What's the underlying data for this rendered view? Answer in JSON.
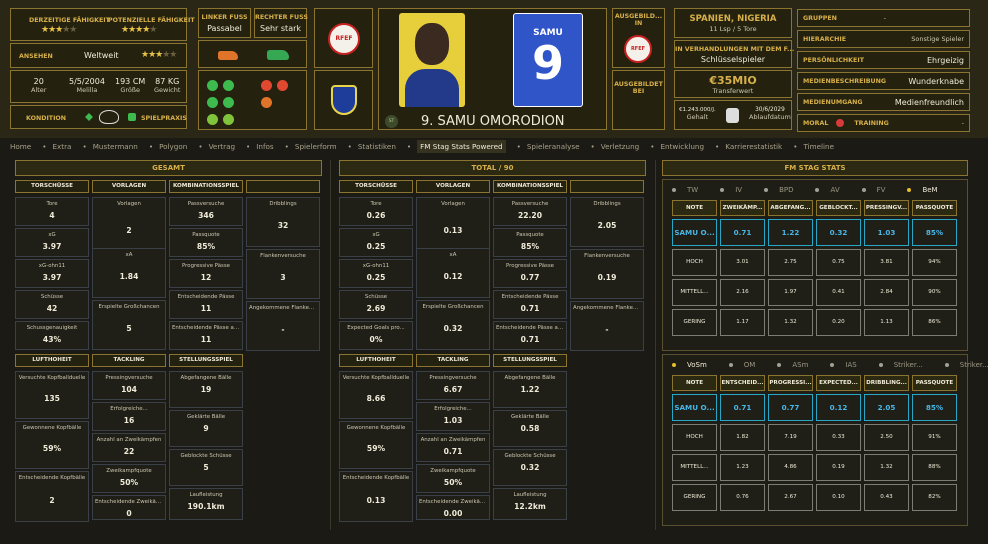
{
  "header": {
    "ratings": {
      "current_label": "DERZEITIGE FÄHIGKEIT",
      "current_stars": 3,
      "potential_label": "POTENZIELLE FÄHIGKEIT",
      "potential_stars": 4.5,
      "reputation_label": "ANSEHEN",
      "reputation_value": "Weltweit",
      "reputation_stars": 3.5
    },
    "bio": {
      "age": "20",
      "age_label": "Alter",
      "dob": "5/5/2004",
      "dob_label": "Melilla",
      "height": "193 CM",
      "height_label": "Größe",
      "weight": "87 KG",
      "weight_label": "Gewicht"
    },
    "condition_label": "KONDITION",
    "match_practice_label": "SPIELPRAXIS",
    "feet": {
      "left_label": "LINKER FUSS",
      "left_value": "Passabel",
      "right_label": "RECHTER FUSS",
      "right_value": "Sehr stark"
    },
    "federation_logo": "RFEF",
    "club_logo": "FC Porto",
    "player": {
      "shirt_name": "SAMU",
      "shirt_number": "9",
      "full_name": "9. SAMU OMORODION",
      "position_badge": "ST"
    },
    "trained": {
      "label1": "AUSGEBILD... IN",
      "label2": "AUSGEBILDET BEI"
    },
    "nation": {
      "value": "SPANIEN, NIGERIA",
      "caps": "11 Lsp / 5 Tore"
    },
    "negotiation": {
      "label": "IN VERHANDLUNGEN MIT DEM F...",
      "value": "Schlüsselspieler"
    },
    "transfer": {
      "value": "€35MIO",
      "label": "Transferwert"
    },
    "wage": {
      "value": "€1.243.000/J.",
      "label": "Gehalt",
      "expiry": "30/6/2029",
      "expiry_label": "Ablaufdatum"
    },
    "attributes": [
      {
        "label": "GRUPPEN",
        "value": "-"
      },
      {
        "label": "HIERARCHIE",
        "value": "Sonstige Spieler"
      },
      {
        "label": "PERSÖNLICHKEIT",
        "value": "Ehrgeizig"
      },
      {
        "label": "MEDIENBESCHREIBUNG",
        "value": "Wunderknabe"
      },
      {
        "label": "MEDIENUMGANG",
        "value": "Medienfreundlich"
      }
    ],
    "moral_label": "MORAL",
    "training_label": "TRAINING",
    "training_value": "-"
  },
  "nav": [
    "Home",
    "Extra",
    "Mustermann",
    "Polygon",
    "Vertrag",
    "Infos",
    "Spielerform",
    "Statistiken",
    "FM Stag Stats Powered",
    "Spieleranalyse",
    "Verletzung",
    "Entwicklung",
    "Karrierestatistik",
    "Timeline"
  ],
  "nav_active": 8,
  "panels": {
    "gesamt": {
      "title": "GESAMT",
      "torschuesse": {
        "title": "TORSCHÜSSE",
        "cells": [
          {
            "l": "Tore",
            "v": "4"
          },
          {
            "l": "xG",
            "v": "3.97"
          },
          {
            "l": "xG-ohn11",
            "v": "3.97"
          },
          {
            "l": "Schüsse",
            "v": "42"
          },
          {
            "l": "Schussgenauigkeit",
            "v": "43%"
          }
        ]
      },
      "vorlagen": {
        "title": "VORLAGEN",
        "cells": [
          {
            "l": "Vorlagen",
            "v": "2"
          },
          {
            "l": "xA",
            "v": "1.84"
          },
          {
            "l": "Erspielte Großchancen",
            "v": "5"
          }
        ]
      },
      "kombi": {
        "title": "KOMBINATIONSSPIEL",
        "cells": [
          {
            "l": "Passversuche",
            "v": "346"
          },
          {
            "l": "Passquote",
            "v": "85%"
          },
          {
            "l": "Progressive Pässe",
            "v": "12"
          },
          {
            "l": "Entscheidende Pässe",
            "v": "11"
          },
          {
            "l": "Entscheidende Pässe aus...",
            "v": "11"
          }
        ]
      },
      "flanken": {
        "title": "",
        "cells": [
          {
            "l": "Dribblings",
            "v": "32"
          },
          {
            "l": "Flankenversuche",
            "v": "3"
          },
          {
            "l": "Angekommene Flanken / Versuche",
            "v": "-"
          }
        ]
      },
      "luft": {
        "title": "LUFTHOHEIT",
        "cells": [
          {
            "l": "Versuchte Kopfballduelle",
            "v": "135"
          },
          {
            "l": "Gewonnene Kopfbälle",
            "v": "59%"
          },
          {
            "l": "Entscheidende Kopfbälle",
            "v": "2"
          }
        ]
      },
      "tackling": {
        "title": "TACKLING",
        "cells": [
          {
            "l": "Pressingversuche",
            "v": "104"
          },
          {
            "l": "Erfolgreiche...",
            "v": "16"
          },
          {
            "l": "Anzahl an Zweikämpfen",
            "v": "22"
          },
          {
            "l": "Zweikampfquote",
            "v": "50%"
          },
          {
            "l": "Entscheidende Zweikämpfe",
            "v": "0"
          }
        ]
      },
      "stellung": {
        "title": "STELLUNGSSPIEL",
        "cells": [
          {
            "l": "Abgefangene Bälle",
            "v": "19"
          },
          {
            "l": "Geklärte Bälle",
            "v": "9"
          },
          {
            "l": "Geblockte Schüsse",
            "v": "5"
          },
          {
            "l": "Laufleistung",
            "v": "190.1km"
          }
        ]
      }
    },
    "per90": {
      "title": "TOTAL / 90",
      "torschuesse": {
        "title": "TORSCHÜSSE",
        "cells": [
          {
            "l": "Tore",
            "v": "0.26"
          },
          {
            "l": "xG",
            "v": "0.25"
          },
          {
            "l": "xG-ohn11",
            "v": "0.25"
          },
          {
            "l": "Schüsse",
            "v": "2.69"
          },
          {
            "l": "Expected Goals pro...",
            "v": "0%"
          }
        ]
      },
      "vorlagen": {
        "title": "VORLAGEN",
        "cells": [
          {
            "l": "Vorlagen",
            "v": "0.13"
          },
          {
            "l": "xA",
            "v": "0.12"
          },
          {
            "l": "Erspielte Großchancen",
            "v": "0.32"
          }
        ]
      },
      "kombi": {
        "title": "KOMBINATIONSSPIEL",
        "cells": [
          {
            "l": "Passversuche",
            "v": "22.20"
          },
          {
            "l": "Passquote",
            "v": "85%"
          },
          {
            "l": "Progressive Pässe",
            "v": "0.77"
          },
          {
            "l": "Entscheidende Pässe",
            "v": "0.71"
          },
          {
            "l": "Entscheidende Pässe aus...",
            "v": "0.71"
          }
        ]
      },
      "flanken": {
        "title": "",
        "cells": [
          {
            "l": "Dribblings",
            "v": "2.05"
          },
          {
            "l": "Flankenversuche",
            "v": "0.19"
          },
          {
            "l": "Angekommene Flanken / Versuche",
            "v": "-"
          }
        ]
      },
      "luft": {
        "title": "LUFTHOHEIT",
        "cells": [
          {
            "l": "Versuchte Kopfballduelle",
            "v": "8.66"
          },
          {
            "l": "Gewonnene Kopfbälle",
            "v": "59%"
          },
          {
            "l": "Entscheidende Kopfbälle",
            "v": "0.13"
          }
        ]
      },
      "tackling": {
        "title": "TACKLING",
        "cells": [
          {
            "l": "Pressingversuche",
            "v": "6.67"
          },
          {
            "l": "Erfolgreiche...",
            "v": "1.03"
          },
          {
            "l": "Anzahl an Zweikämpfen",
            "v": "0.71"
          },
          {
            "l": "Zweikampfquote",
            "v": "50%"
          },
          {
            "l": "Entscheidende Zweikämpfe",
            "v": "0.00"
          }
        ]
      },
      "stellung": {
        "title": "STELLUNGSSPIEL",
        "cells": [
          {
            "l": "Abgefangene Bälle",
            "v": "1.22"
          },
          {
            "l": "Geklärte Bälle",
            "v": "0.58"
          },
          {
            "l": "Geblockte Schüsse",
            "v": "0.32"
          },
          {
            "l": "Laufleistung",
            "v": "12.2km"
          }
        ]
      }
    }
  },
  "fm": {
    "title": "FM STAG STATS",
    "table1": {
      "tabs": [
        "TW",
        "IV",
        "BPD",
        "AV",
        "FV",
        "BeM"
      ],
      "active": 5,
      "headers": [
        "NOTE",
        "ZWEIKÄMP...",
        "ABGEFANG...",
        "GEBLOCKT...",
        "PRESSINGV...",
        "PASSQUOTE"
      ],
      "rows": [
        [
          "SAMU O...",
          "0.71",
          "1.22",
          "0.32",
          "1.03",
          "85%"
        ],
        [
          "HOCH",
          "3.01",
          "2.75",
          "0.75",
          "3.81",
          "94%"
        ],
        [
          "MITTELL...",
          "2.16",
          "1.97",
          "0.41",
          "2.84",
          "90%"
        ],
        [
          "GERING",
          "1.17",
          "1.32",
          "0.20",
          "1.13",
          "86%"
        ]
      ]
    },
    "table2": {
      "tabs": [
        "VoSm",
        "OM",
        "ASm",
        "IAS",
        "Striker...",
        "Striker..."
      ],
      "active": 0,
      "headers": [
        "NOTE",
        "ENTSCHEID...",
        "PROGRESSI...",
        "EXPECTED...",
        "DRIBBLING...",
        "PASSQUOTE"
      ],
      "rows": [
        [
          "SAMU O...",
          "0.71",
          "0.77",
          "0.12",
          "2.05",
          "85%"
        ],
        [
          "HOCH",
          "1.82",
          "7.19",
          "0.33",
          "2.50",
          "91%"
        ],
        [
          "MITTELL...",
          "1.23",
          "4.86",
          "0.19",
          "1.32",
          "88%"
        ],
        [
          "GERING",
          "0.76",
          "2.67",
          "0.10",
          "0.43",
          "82%"
        ]
      ]
    }
  }
}
